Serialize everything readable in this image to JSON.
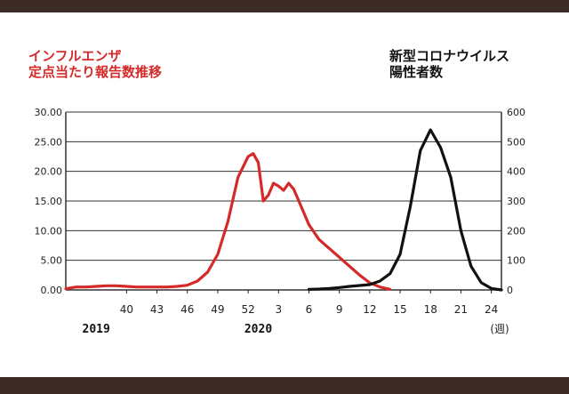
{
  "chart_data": {
    "type": "line",
    "left_axis_title": [
      "インフルエンザ",
      "定点当たり報告数推移"
    ],
    "right_axis_title": [
      "新型コロナウイルス",
      "陽性者数"
    ],
    "left_ylim": [
      0,
      30
    ],
    "right_ylim": [
      0,
      600
    ],
    "left_ticks": [
      "0.00",
      "5.00",
      "10.00",
      "15.00",
      "20.00",
      "25.00",
      "30.00"
    ],
    "right_ticks": [
      "0",
      "100",
      "200",
      "300",
      "400",
      "500",
      "600"
    ],
    "x_ticks": [
      {
        "label": "40",
        "t": 3
      },
      {
        "label": "43",
        "t": 6
      },
      {
        "label": "46",
        "t": 9
      },
      {
        "label": "49",
        "t": 12
      },
      {
        "label": "52",
        "t": 15
      },
      {
        "label": "3",
        "t": 18
      },
      {
        "label": "6",
        "t": 21
      },
      {
        "label": "9",
        "t": 24
      },
      {
        "label": "12",
        "t": 27
      },
      {
        "label": "15",
        "t": 30
      },
      {
        "label": "18",
        "t": 33
      },
      {
        "label": "21",
        "t": 36
      },
      {
        "label": "24",
        "t": 39
      }
    ],
    "x_unit": "(週)",
    "years": [
      {
        "label": "2019",
        "t": 0
      },
      {
        "label": "2020",
        "t": 16
      }
    ],
    "grid": true,
    "series": [
      {
        "name": "インフルエンザ",
        "axis": "left",
        "color": "#d42a2a",
        "points": [
          [
            -3,
            0.2
          ],
          [
            -2,
            0.5
          ],
          [
            -1,
            0.5
          ],
          [
            0,
            0.6
          ],
          [
            1,
            0.7
          ],
          [
            2,
            0.7
          ],
          [
            3,
            0.6
          ],
          [
            4,
            0.5
          ],
          [
            5,
            0.5
          ],
          [
            6,
            0.5
          ],
          [
            7,
            0.5
          ],
          [
            8,
            0.6
          ],
          [
            9,
            0.8
          ],
          [
            10,
            1.5
          ],
          [
            11,
            3.0
          ],
          [
            12,
            6.0
          ],
          [
            13,
            11.5
          ],
          [
            14,
            19.0
          ],
          [
            15,
            22.5
          ],
          [
            15.5,
            23.0
          ],
          [
            16,
            21.5
          ],
          [
            16.5,
            15.0
          ],
          [
            17,
            16.0
          ],
          [
            17.5,
            18.0
          ],
          [
            18,
            17.5
          ],
          [
            18.5,
            16.8
          ],
          [
            19,
            18.0
          ],
          [
            19.5,
            17.0
          ],
          [
            20,
            15.0
          ],
          [
            21,
            11.0
          ],
          [
            22,
            8.5
          ],
          [
            23,
            7.0
          ],
          [
            24,
            5.5
          ],
          [
            25,
            4.0
          ],
          [
            26,
            2.5
          ],
          [
            27,
            1.2
          ],
          [
            28,
            0.5
          ],
          [
            29,
            0.1
          ]
        ]
      },
      {
        "name": "新型コロナウイルス陽性者数",
        "axis": "right",
        "color": "#111111",
        "points": [
          [
            21,
            2
          ],
          [
            22,
            3
          ],
          [
            23,
            5
          ],
          [
            24,
            8
          ],
          [
            25,
            12
          ],
          [
            26,
            15
          ],
          [
            27,
            18
          ],
          [
            28,
            30
          ],
          [
            29,
            55
          ],
          [
            30,
            120
          ],
          [
            31,
            280
          ],
          [
            32,
            470
          ],
          [
            33,
            540
          ],
          [
            34,
            480
          ],
          [
            35,
            380
          ],
          [
            36,
            200
          ],
          [
            37,
            80
          ],
          [
            38,
            25
          ],
          [
            39,
            5
          ],
          [
            40,
            0
          ]
        ]
      }
    ]
  }
}
